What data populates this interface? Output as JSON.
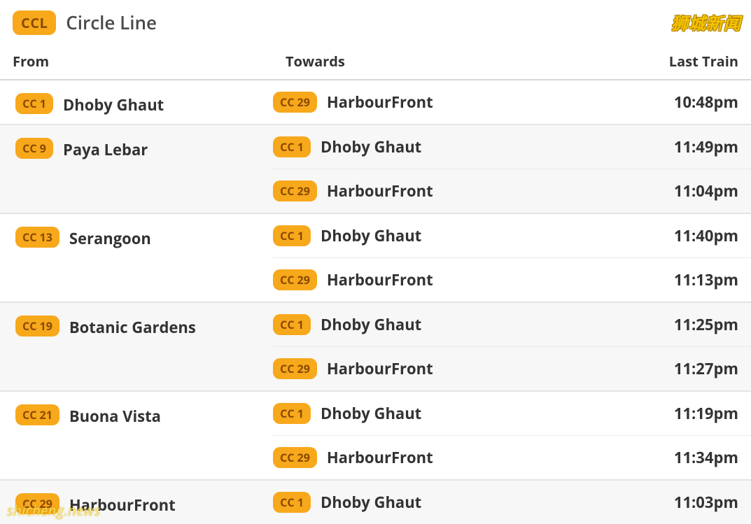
{
  "line": {
    "badge": "CCL",
    "badge_bg": "#f7a81b",
    "badge_fg": "#8a4a00",
    "title": "Circle Line"
  },
  "watermark_top": "狮城新闻",
  "watermark_bottom": "shicheng.news",
  "columns": {
    "from": "From",
    "towards": "Towards",
    "last": "Last Train"
  },
  "rows": [
    {
      "from_code": "CC 1",
      "from_name": "Dhoby Ghaut",
      "alt": false,
      "dest": [
        {
          "code": "CC 29",
          "name": "HarbourFront",
          "time": "10:48pm"
        }
      ]
    },
    {
      "from_code": "CC 9",
      "from_name": "Paya Lebar",
      "alt": true,
      "dest": [
        {
          "code": "CC 1",
          "name": "Dhoby Ghaut",
          "time": "11:49pm"
        },
        {
          "code": "CC 29",
          "name": "HarbourFront",
          "time": "11:04pm"
        }
      ]
    },
    {
      "from_code": "CC 13",
      "from_name": "Serangoon",
      "alt": false,
      "dest": [
        {
          "code": "CC 1",
          "name": "Dhoby Ghaut",
          "time": "11:40pm"
        },
        {
          "code": "CC 29",
          "name": "HarbourFront",
          "time": "11:13pm"
        }
      ]
    },
    {
      "from_code": "CC 19",
      "from_name": "Botanic Gardens",
      "alt": true,
      "dest": [
        {
          "code": "CC 1",
          "name": "Dhoby Ghaut",
          "time": "11:25pm"
        },
        {
          "code": "CC 29",
          "name": "HarbourFront",
          "time": "11:27pm"
        }
      ]
    },
    {
      "from_code": "CC 21",
      "from_name": "Buona Vista",
      "alt": false,
      "dest": [
        {
          "code": "CC 1",
          "name": "Dhoby Ghaut",
          "time": "11:19pm"
        },
        {
          "code": "CC 29",
          "name": "HarbourFront",
          "time": "11:34pm"
        }
      ]
    },
    {
      "from_code": "CC 29",
      "from_name": "HarbourFront",
      "alt": true,
      "dest": [
        {
          "code": "CC 1",
          "name": "Dhoby Ghaut",
          "time": "11:03pm"
        }
      ]
    }
  ],
  "style": {
    "badge_bg": "#f7a81b",
    "badge_fg": "#8a4a00",
    "text_color": "#333333",
    "alt_row_bg": "#f7f7f7",
    "border_color": "#e4e4e4",
    "header_border": "#d8d8d8",
    "font_size_title": 26,
    "font_size_body": 22,
    "font_size_badge": 16
  }
}
